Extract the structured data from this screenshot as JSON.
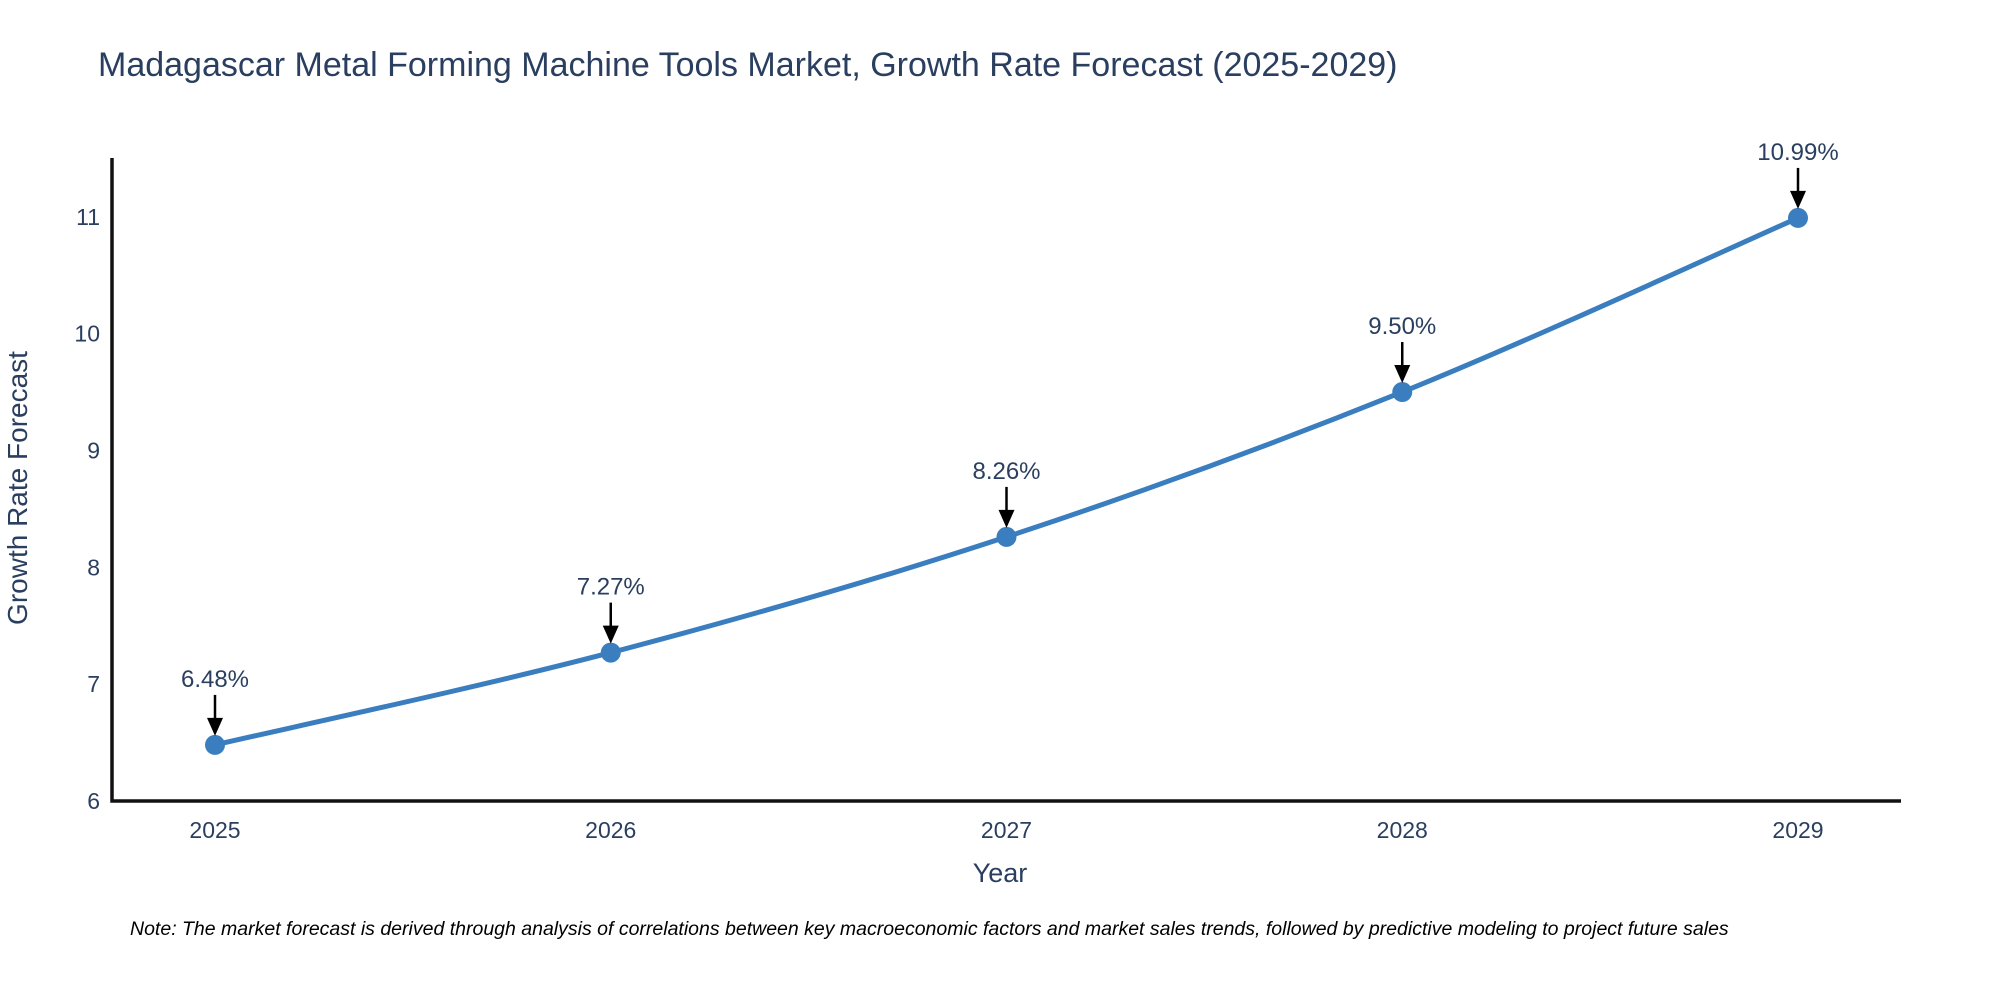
{
  "title": "Madagascar Metal Forming Machine Tools Market, Growth Rate Forecast (2025-2029)",
  "note": "Note: The market forecast is derived through analysis of correlations between key macroeconomic factors and market sales trends, followed by predictive modeling to project future sales",
  "chart_data": {
    "type": "line",
    "title": "Madagascar Metal Forming Machine Tools Market, Growth Rate Forecast (2025-2029)",
    "categories": [
      "2025",
      "2026",
      "2027",
      "2028",
      "2029"
    ],
    "x": [
      2025,
      2026,
      2027,
      2028,
      2029
    ],
    "values": [
      6.48,
      7.27,
      8.26,
      9.5,
      10.99
    ],
    "point_labels": [
      "6.48%",
      "7.27%",
      "8.26%",
      "9.50%",
      "10.99%"
    ],
    "xlabel": "Year",
    "ylabel": "Growth Rate Forecast",
    "ylim": [
      6,
      11.5
    ],
    "yticks": [
      6,
      7,
      8,
      9,
      10,
      11
    ],
    "grid": false,
    "legend": "none",
    "line_color": "#3a7ebf",
    "marker_color": "#3a7ebf",
    "arrow_color": "#000000",
    "axis_line_color": "#111111",
    "text_color": "#2a3f5f"
  }
}
